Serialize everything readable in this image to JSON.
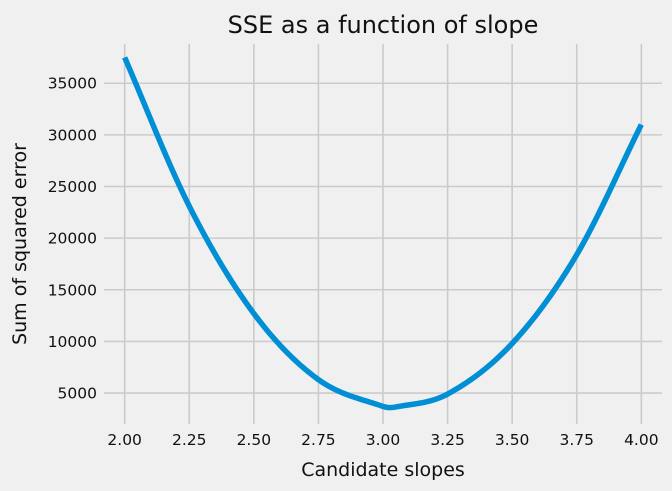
{
  "chart_data": {
    "type": "line",
    "title": "SSE as a function of slope",
    "xlabel": "Candidate slopes",
    "ylabel": "Sum of squared error",
    "xlim": [
      1.92,
      4.08
    ],
    "ylim": [
      2000,
      38800
    ],
    "x_ticks": [
      2.0,
      2.25,
      2.5,
      2.75,
      3.0,
      3.25,
      3.5,
      3.75,
      4.0
    ],
    "x_tick_labels": [
      "2.00",
      "2.25",
      "2.50",
      "2.75",
      "3.00",
      "3.25",
      "3.50",
      "3.75",
      "4.00"
    ],
    "y_ticks": [
      5000,
      10000,
      15000,
      20000,
      25000,
      30000,
      35000
    ],
    "y_tick_labels": [
      "5000",
      "10000",
      "15000",
      "20000",
      "25000",
      "30000",
      "35000"
    ],
    "grid": true,
    "line_color": "#008fd5",
    "series": [
      {
        "x": [
          2.0,
          2.25,
          2.5,
          2.75,
          3.0,
          3.05,
          3.25,
          3.5,
          3.75,
          4.0
        ],
        "values": [
          37500,
          23100,
          12700,
          6300,
          3700,
          3650,
          4900,
          9800,
          18400,
          31000
        ]
      }
    ]
  }
}
